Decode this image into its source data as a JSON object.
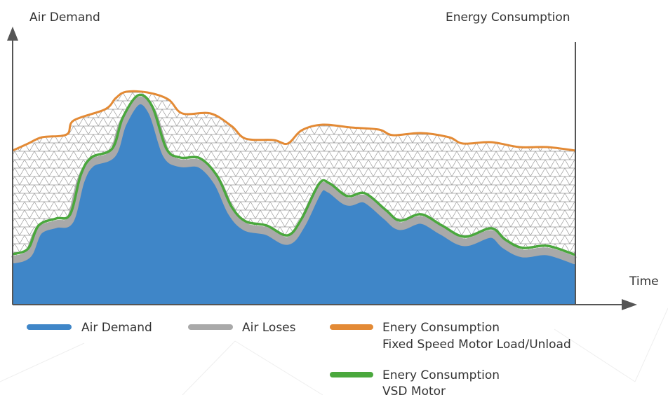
{
  "axes": {
    "left_label": "Air Demand",
    "right_label": "Energy Consumption",
    "x_label": "Time"
  },
  "legend": [
    {
      "lines": [
        "Air Demand"
      ]
    },
    {
      "lines": [
        "Air Loses"
      ]
    },
    {
      "lines": [
        "Enery Consumption",
        "Fixed Speed Motor Load/Unload"
      ]
    },
    {
      "lines": [
        "Enery Consumption",
        "VSD Motor"
      ]
    }
  ]
}
